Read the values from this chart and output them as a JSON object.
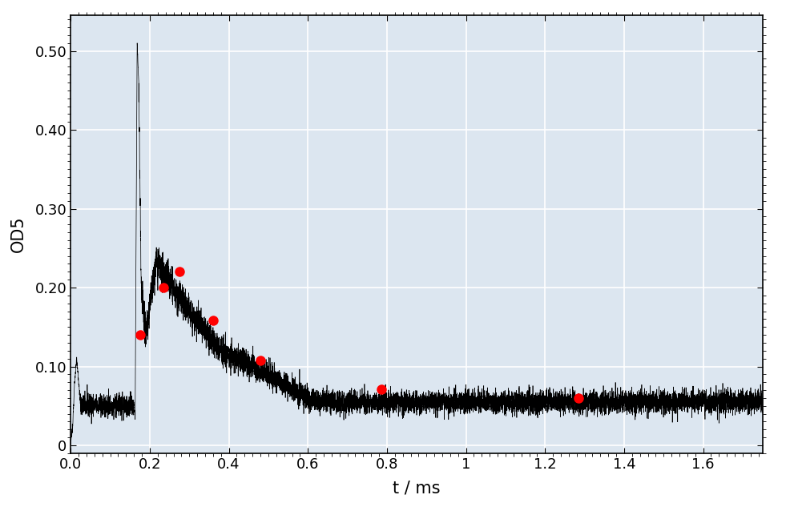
{
  "xlabel": "t / ms",
  "ylabel": "OD5",
  "xlim": [
    0,
    1.75
  ],
  "ylim": [
    -0.01,
    0.545
  ],
  "yticks": [
    0,
    0.1,
    0.2,
    0.3,
    0.4,
    0.5
  ],
  "xticks": [
    0,
    0.2,
    0.4,
    0.6,
    0.8,
    1.0,
    1.2,
    1.4,
    1.6
  ],
  "background_color": "#dce6f0",
  "line_color": "#000000",
  "dot_color": "#ff0000",
  "dot_points": [
    [
      0.175,
      0.14
    ],
    [
      0.235,
      0.2
    ],
    [
      0.275,
      0.22
    ],
    [
      0.36,
      0.158
    ],
    [
      0.48,
      0.108
    ],
    [
      0.785,
      0.071
    ],
    [
      1.285,
      0.06
    ]
  ],
  "noise_seed": 42,
  "grid_color": "#ffffff",
  "label_fontsize": 15,
  "tick_fontsize": 13
}
